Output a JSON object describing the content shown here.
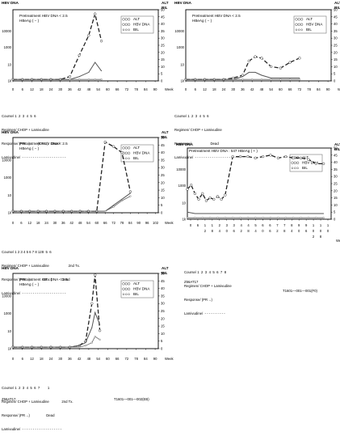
{
  "chart_data": [
    {
      "type": "line",
      "left_axis_title": "HBV DNA",
      "right_axis_title": [
        "ALT",
        "BIL"
      ],
      "annotation": [
        "Pretreatment  HBV DNA < 2.5",
        "HBeAg  ( − )"
      ],
      "y_ticks_left": [
        "10000",
        "1000",
        "10",
        "1k"
      ],
      "y_ticks_right": [
        "50",
        "45",
        "40",
        "35",
        "30",
        "25",
        "20",
        "15",
        "10",
        "5",
        "0"
      ],
      "x_ticks": [
        "0",
        "6",
        "12",
        "18",
        "24",
        "30",
        "36",
        "42",
        "48",
        "54",
        "60",
        "66",
        "72",
        "78",
        "84",
        "90"
      ],
      "xlabel": "Week",
      "legend": [
        "ALT",
        "HBV DNA",
        "BIL"
      ],
      "legend_position": "top-right",
      "xlim": [
        0,
        92
      ],
      "ylim_right": [
        0,
        50
      ],
      "series": [
        {
          "style": "dashed",
          "x": [
            0,
            6,
            12,
            18,
            24,
            30,
            36,
            42,
            48,
            52,
            56
          ],
          "y": [
            1,
            1,
            1,
            1,
            1,
            1,
            3,
            18,
            32,
            47,
            28
          ]
        },
        {
          "style": "solid",
          "x": [
            0,
            6,
            12,
            18,
            24,
            30,
            36,
            42,
            48,
            52,
            56
          ],
          "y": [
            1,
            1,
            1,
            1,
            1,
            1,
            1,
            3,
            6,
            13,
            7
          ]
        },
        {
          "style": "dotted",
          "x": [
            0,
            6,
            12,
            18,
            24,
            30,
            36,
            42,
            48,
            52,
            56
          ],
          "y": [
            1,
            1,
            1,
            1,
            1,
            1,
            1,
            1,
            1,
            1,
            1
          ]
        }
      ],
      "course": {
        "course": "1  2  3  4  5  6",
        "regimen": "CHOP + Lamivudine",
        "response": "(PR→)        (CR→)",
        "dead": "Dead",
        "lamivudine": ""
      }
    },
    {
      "type": "line",
      "left_axis_title": "HBV DNA",
      "right_axis_title": [
        "ALT",
        "BIL"
      ],
      "annotation": [
        "Pretreatment  HBV DNA < 2.5",
        "HBeAg  ( − )"
      ],
      "y_ticks_left": [
        "10000",
        "1000",
        "10",
        "1k"
      ],
      "y_ticks_right": [
        "50",
        "45",
        "40",
        "35",
        "30",
        "25",
        "20",
        "15",
        "10",
        "5",
        "0"
      ],
      "x_ticks": [
        "0",
        "6",
        "12",
        "18",
        "24",
        "30",
        "36",
        "42",
        "48",
        "54",
        "60",
        "66",
        "72",
        "78",
        "84",
        "90"
      ],
      "xlabel": "Week",
      "legend": [
        "ALT",
        "HBV DNA",
        "BIL"
      ],
      "legend_position": "top-right",
      "xlim": [
        0,
        92
      ],
      "ylim_right": [
        0,
        50
      ],
      "series": [
        {
          "style": "dashed",
          "x": [
            0,
            6,
            12,
            18,
            24,
            30,
            36,
            40,
            44,
            48,
            54,
            60,
            66,
            72
          ],
          "y": [
            1,
            1,
            1,
            1,
            1,
            2,
            4,
            14,
            17,
            16,
            10,
            9,
            13,
            16
          ]
        },
        {
          "style": "solid",
          "x": [
            0,
            6,
            12,
            18,
            24,
            30,
            36,
            40,
            44,
            48,
            54,
            60,
            66,
            72
          ],
          "y": [
            1,
            1,
            1,
            1,
            1,
            1,
            3,
            6,
            6,
            4,
            2,
            2,
            2,
            2
          ]
        },
        {
          "style": "dotted",
          "x": [
            0,
            6,
            12,
            18,
            24,
            30,
            36,
            42,
            48,
            54,
            60,
            66,
            72
          ],
          "y": [
            1,
            1,
            1,
            1,
            1,
            1,
            1,
            1,
            1,
            1,
            1,
            1,
            1
          ]
        }
      ],
      "course": {
        "course": "1  2  3  4  5  6",
        "regimen": "CHOP + Lamivudine",
        "response": "",
        "dead": "Dead",
        "lamivudine": ""
      }
    },
    {
      "type": "line",
      "left_axis_title": "HBV DNA",
      "right_axis_title": [
        "ALT",
        "BIL"
      ],
      "annotation": [
        "Pretreatment  HBV DNA < 2.5",
        "HBeAg  ( − )"
      ],
      "y_ticks_left": [
        "10000",
        "1000",
        "10",
        "1k"
      ],
      "y_ticks_right": [
        "50",
        "45",
        "40",
        "35",
        "30",
        "25",
        "20",
        "15",
        "10",
        "5",
        "0"
      ],
      "x_ticks": [
        "0",
        "6",
        "12",
        "18",
        "24",
        "30",
        "36",
        "42",
        "48",
        "54",
        "60",
        "66",
        "72",
        "78",
        "84",
        "90",
        "96",
        "102"
      ],
      "xlabel": "Week",
      "legend": [
        "ALT",
        "HBV DNA",
        "BIL"
      ],
      "legend_position": "top-right",
      "xlim": [
        0,
        104
      ],
      "ylim_right": [
        0,
        50
      ],
      "series": [
        {
          "style": "dashed",
          "x": [
            0,
            6,
            12,
            18,
            24,
            30,
            36,
            42,
            48,
            54,
            60,
            66,
            72,
            78,
            84
          ],
          "y": [
            1,
            1,
            1,
            1,
            1,
            1,
            1,
            1,
            1,
            1,
            1,
            47,
            44,
            40,
            14
          ]
        },
        {
          "style": "solid",
          "x": [
            0,
            6,
            12,
            18,
            24,
            30,
            36,
            42,
            48,
            54,
            60,
            66,
            72,
            78,
            84
          ],
          "y": [
            1,
            1,
            1,
            1,
            1,
            1,
            1,
            1,
            1,
            1,
            1,
            1,
            5,
            9,
            13
          ]
        },
        {
          "style": "dotted",
          "x": [
            0,
            6,
            12,
            18,
            24,
            30,
            36,
            42,
            48,
            54,
            60,
            66,
            72,
            78,
            84
          ],
          "y": [
            1,
            1,
            1,
            1,
            1,
            1,
            1,
            1,
            1,
            1,
            1,
            1,
            4,
            8,
            11
          ]
        }
      ],
      "course": {
        "course": "1 2 3 4 5 6 7 8 128  5  6",
        "regimen": "CHOP + Lamivudine                    2nd Tx.",
        "response": "(PR→)             CR→)",
        "dead": "Dead",
        "lamivudine": ""
      }
    },
    {
      "type": "line",
      "left_axis_title": "HBV DNA",
      "right_axis_title": [
        "ALT",
        "BIL"
      ],
      "annotation": [
        "Pretreatment  HBV DNA : 547  HBeAg  ( + )"
      ],
      "y_ticks_left": [
        "10000",
        "1000",
        "10",
        "1k"
      ],
      "y_ticks_right": [
        "50",
        "45",
        "40",
        "35",
        "30",
        "25",
        "20",
        "15",
        "10",
        "5",
        "0"
      ],
      "x_ticks_row1": [
        "0",
        "6",
        "1",
        "1",
        "2",
        "3",
        "3",
        "4",
        "4",
        "5",
        "6",
        "6",
        "7",
        "7",
        "8",
        "9",
        "9",
        "1",
        "1",
        "1"
      ],
      "x_ticks_row2": [
        "",
        "",
        "2",
        "8",
        "4",
        "0",
        "6",
        "2",
        "8",
        "4",
        "0",
        "6",
        "2",
        "8",
        "4",
        "0",
        "6",
        "0",
        "0",
        "0"
      ],
      "x_ticks_row3": [
        "",
        "",
        "",
        "",
        "",
        "",
        "",
        "",
        "",
        "",
        "",
        "",
        "",
        "",
        "",
        "",
        "",
        "2",
        "8",
        ""
      ],
      "xlabel": "Week",
      "legend": [
        "ALT",
        "HBV DNA",
        "BIL"
      ],
      "legend_position": "top-right",
      "xlim": [
        0,
        114
      ],
      "ylim_right": [
        0,
        50
      ],
      "series": [
        {
          "style": "dashed",
          "x": [
            0,
            3,
            6,
            9,
            12,
            15,
            18,
            21,
            24,
            27,
            30,
            36,
            42,
            48,
            54,
            60,
            66,
            72,
            78,
            84,
            90,
            96,
            102,
            108
          ],
          "y": [
            21,
            24,
            18,
            14,
            18,
            13,
            15,
            14,
            16,
            14,
            17,
            44,
            44,
            44,
            43,
            44,
            45,
            43,
            44,
            43,
            43,
            42,
            39,
            39
          ]
        },
        {
          "style": "solid",
          "x": [
            0,
            6,
            12,
            18,
            24,
            30,
            36,
            42,
            48,
            54,
            60,
            66,
            72,
            78,
            84,
            90,
            96,
            102,
            108
          ],
          "y": [
            5,
            4,
            4,
            4,
            4,
            4,
            4,
            4,
            4,
            4,
            4,
            4,
            4,
            4,
            4,
            4,
            4,
            4,
            4
          ]
        },
        {
          "style": "dotted",
          "x": [
            0,
            6,
            12,
            18,
            24,
            30,
            36,
            42,
            48,
            54,
            60,
            66,
            72,
            78,
            84,
            90,
            96,
            102,
            108
          ],
          "y": [
            1,
            1,
            1,
            1,
            1,
            1,
            1,
            1,
            1,
            1,
            1,
            1,
            1,
            1,
            1,
            1,
            1,
            1,
            1
          ]
        }
      ],
      "course": {
        "course": "1  2  3  4  5  6  7  8",
        "regimen": "CHOP + Lamivudine",
        "response": "(PR→)",
        "dead": "",
        "lamivudine": ""
      }
    },
    {
      "type": "line",
      "left_axis_title": "HBV DNA",
      "right_axis_title": [
        "ALT",
        "BIL"
      ],
      "annotation": [
        "Pretreatment  HBV DNA < 2.5",
        "HBeAg  ( − )"
      ],
      "y_ticks_left": [
        "10000",
        "1000",
        "10",
        "1k"
      ],
      "y_ticks_right": [
        "50",
        "45",
        "40",
        "35",
        "30",
        "25",
        "20",
        "15",
        "10",
        "5",
        "0"
      ],
      "x_ticks": [
        "0",
        "6",
        "12",
        "18",
        "24",
        "30",
        "36",
        "42",
        "48",
        "54",
        "60",
        "66",
        "72",
        "78",
        "84",
        "90"
      ],
      "xlabel": "Week",
      "legend": [
        "ALT",
        "HBV DNA",
        "BIL"
      ],
      "legend_position": "top-right",
      "xlim": [
        0,
        92
      ],
      "ylim_right": [
        0,
        50
      ],
      "series": [
        {
          "style": "dashed",
          "x": [
            0,
            6,
            12,
            18,
            24,
            30,
            36,
            42,
            46,
            50,
            52,
            55
          ],
          "y": [
            1,
            1,
            1,
            1,
            1,
            1,
            1,
            2,
            5,
            30,
            49,
            12
          ]
        },
        {
          "style": "solid",
          "x": [
            0,
            6,
            12,
            18,
            24,
            30,
            36,
            42,
            46,
            50,
            52,
            55
          ],
          "y": [
            1,
            1,
            1,
            1,
            1,
            1,
            1,
            2,
            4,
            14,
            24,
            16
          ]
        },
        {
          "style": "dotted",
          "x": [
            0,
            6,
            12,
            18,
            24,
            30,
            36,
            42,
            46,
            50,
            52,
            55
          ],
          "y": [
            1,
            1,
            1,
            1,
            1,
            1,
            1,
            1,
            2,
            4,
            8,
            6
          ]
        }
      ],
      "course": {
        "course": "1  2  3  4  5  6  7        1",
        "regimen": "CHOP + Lamivudine             2nd Tx.",
        "response": "(PR→)",
        "dead": "Dead",
        "lamivudine": ""
      }
    }
  ],
  "course_row_labels": [
    "Course",
    "Regimen",
    "Response",
    "Lamivudine"
  ],
  "footer_codes": {
    "left_a": "Z56AT17",
    "right_a": "T1601—001—001(F0)",
    "left_b": "Z56AT17",
    "right_b": "T1601—001—002(EB)"
  }
}
